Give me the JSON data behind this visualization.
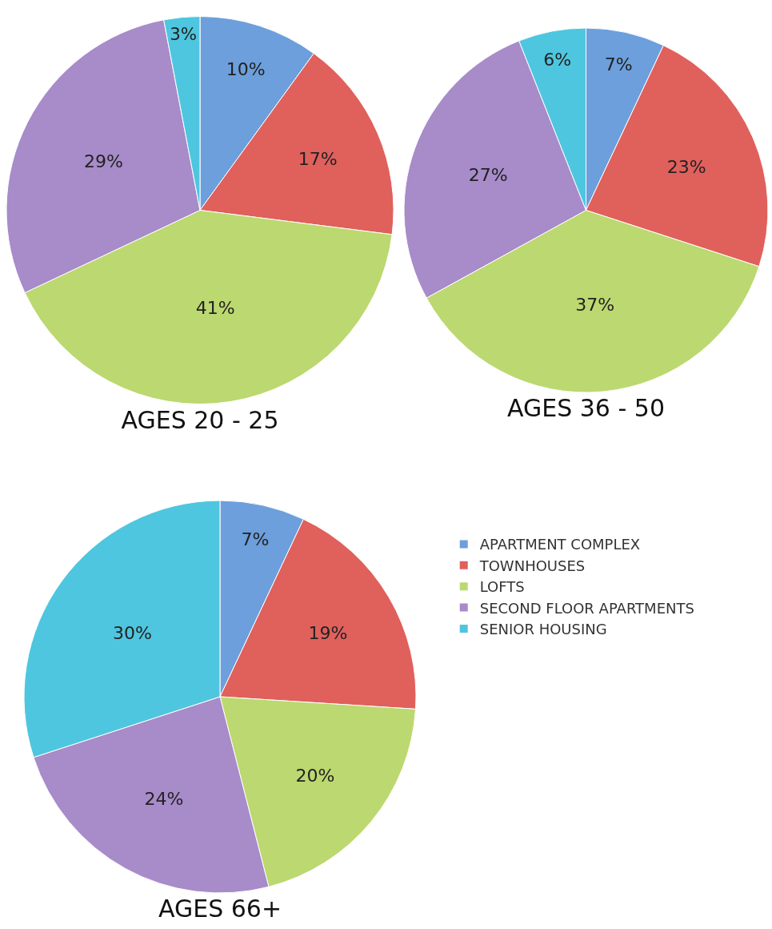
{
  "chart_data": [
    {
      "type": "pie",
      "title": "AGES 20 - 25",
      "categories": [
        "APARTMENT COMPLEX",
        "TOWNHOUSES",
        "LOFTS",
        "SECOND FLOOR APARTMENTS",
        "SENIOR HOUSING"
      ],
      "values": [
        10,
        17,
        41,
        29,
        3
      ],
      "value_labels": [
        "10%",
        "17%",
        "41%",
        "29%",
        "3%"
      ],
      "colors": [
        "#6c9fdc",
        "#e0605c",
        "#bcd870",
        "#a88bc9",
        "#4fc6df"
      ],
      "legend": "bottom right"
    },
    {
      "type": "pie",
      "title": "AGES 36 - 50",
      "categories": [
        null,
        null,
        null,
        null,
        null
      ],
      "values": [
        7,
        23,
        37,
        27,
        6
      ],
      "value_labels": [
        "7%",
        "23%",
        "37%",
        "27%",
        "6%"
      ],
      "colors": [
        "#6c9fdc",
        "#e0605c",
        "#bcd870",
        "#a88bc9",
        "#4fc6df"
      ]
    },
    {
      "type": "pie",
      "title": "AGES 66+",
      "categories": [
        null,
        null,
        null,
        null,
        null
      ],
      "values": [
        7,
        19,
        20,
        24,
        30
      ],
      "value_labels": [
        "7%",
        "19%",
        "20%",
        "24%",
        "30%"
      ],
      "colors": [
        "#6c9fdc",
        "#e0605c",
        "#bcd870",
        "#a88bc9",
        "#4fc6df"
      ]
    }
  ]
}
